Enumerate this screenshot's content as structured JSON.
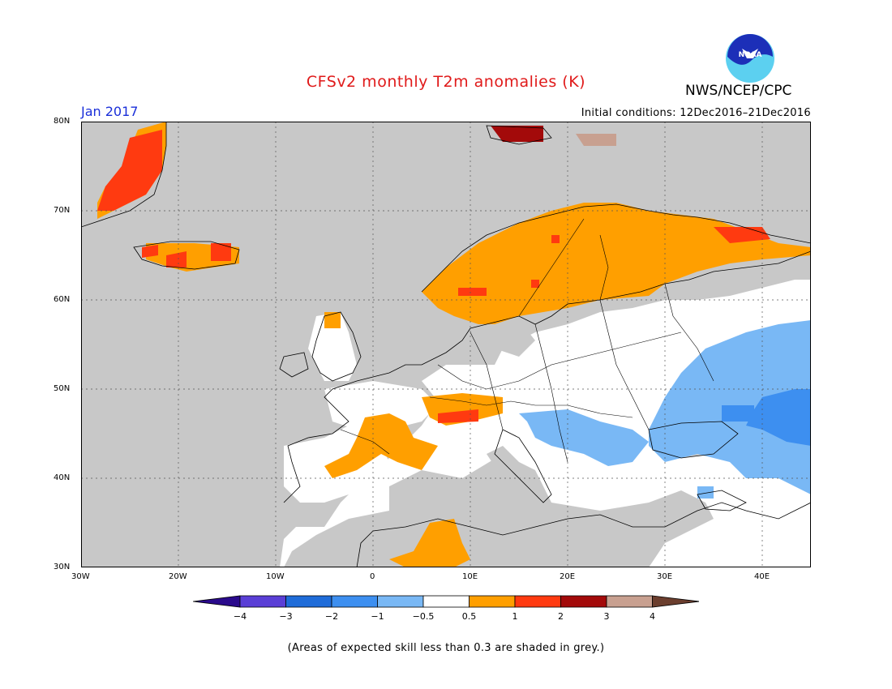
{
  "title": "CFSv2 monthly T2m anomalies (K)",
  "agency": "NWS/NCEP/CPC",
  "logo_text": "NOAA",
  "forecast_month": "Jan 2017",
  "initial_conditions": "Initial conditions: 12Dec2016–21Dec2016",
  "note": "(Areas of expected skill less than 0.3 are shaded in grey.)",
  "map": {
    "lon_range": [
      -30,
      45
    ],
    "lat_range": [
      30,
      80
    ],
    "lat_labels": [
      "80N",
      "70N",
      "60N",
      "50N",
      "40N",
      "30N"
    ],
    "lon_labels": [
      "30W",
      "20W",
      "10W",
      "0",
      "10E",
      "20E",
      "30E",
      "40E"
    ],
    "grid": "dotted",
    "colors": {
      "low_skill_grey": "#c8c8c8",
      "ocean": "#c8c8c8"
    }
  },
  "legend": {
    "labels": [
      "−4",
      "−3",
      "−2",
      "−1",
      "−0.5",
      "0.5",
      "1",
      "2",
      "3",
      "4"
    ],
    "colors": [
      "#2a0a8c",
      "#5a3fd6",
      "#1f6cd9",
      "#3d8ff0",
      "#79b8f5",
      "#ffffff",
      "#ff9f00",
      "#ff3a10",
      "#a30a0a",
      "#c8a090",
      "#6b3e2e"
    ]
  }
}
